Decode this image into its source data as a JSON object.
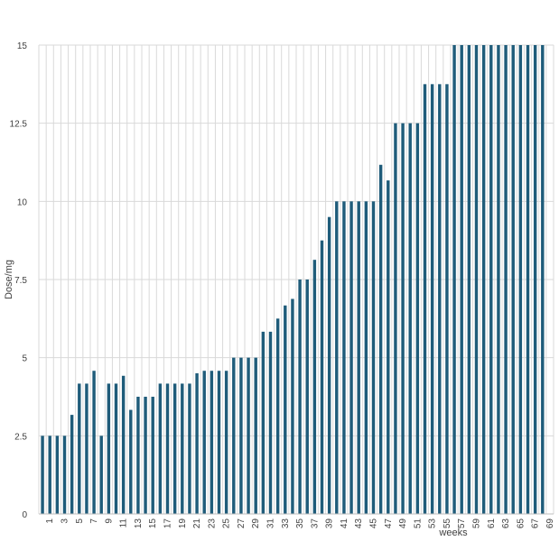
{
  "chart_data": {
    "type": "bar",
    "title": "",
    "xlabel": "weeks",
    "ylabel": "Dose/mg",
    "ylim": [
      0,
      15
    ],
    "yticks": [
      0,
      2.5,
      5,
      7.5,
      10,
      12.5,
      15
    ],
    "ytick_labels": [
      "0",
      "2.5",
      "5",
      "7.5",
      "10",
      "12.5",
      "15"
    ],
    "x_tick_labels": [
      "1",
      "3",
      "5",
      "7",
      "9",
      "11",
      "13",
      "15",
      "17",
      "19",
      "21",
      "23",
      "25",
      "27",
      "29",
      "31",
      "33",
      "35",
      "37",
      "39",
      "41",
      "43",
      "45",
      "47",
      "49",
      "51",
      "53",
      "55",
      "57",
      "59",
      "61",
      "63",
      "65",
      "67",
      "69"
    ],
    "categories": [
      0,
      1,
      2,
      3,
      4,
      5,
      6,
      7,
      8,
      9,
      10,
      11,
      12,
      13,
      14,
      15,
      16,
      17,
      18,
      19,
      20,
      21,
      22,
      23,
      24,
      25,
      26,
      27,
      28,
      29,
      30,
      31,
      32,
      33,
      34,
      35,
      36,
      37,
      38,
      39,
      40,
      41,
      42,
      43,
      44,
      45,
      46,
      47,
      48,
      49,
      50,
      51,
      52,
      53,
      54,
      55,
      56,
      57,
      58,
      59,
      60,
      61,
      62,
      63,
      64,
      65,
      66,
      67,
      68,
      69
    ],
    "values": [
      2.5,
      2.5,
      2.5,
      2.5,
      3.17,
      4.17,
      4.17,
      4.58,
      2.5,
      4.17,
      4.17,
      4.42,
      3.33,
      3.75,
      3.75,
      3.75,
      4.17,
      4.17,
      4.17,
      4.17,
      4.17,
      4.5,
      4.58,
      4.58,
      4.58,
      4.58,
      5,
      5,
      5,
      5,
      5.83,
      5.83,
      6.25,
      6.67,
      6.88,
      7.5,
      7.5,
      8.13,
      8.75,
      9.5,
      10,
      10,
      10,
      10,
      10,
      10,
      11.17,
      10.67,
      12.5,
      12.5,
      12.5,
      12.5,
      13.75,
      13.75,
      13.75,
      13.75,
      15,
      15,
      15,
      15,
      15,
      15,
      15,
      15,
      15,
      15,
      15,
      15,
      15,
      0
    ],
    "colors": {
      "bar": "#1f5c7a",
      "grid": "#d9d9d9",
      "axis": "#bfbfbf",
      "text": "#404040"
    }
  }
}
